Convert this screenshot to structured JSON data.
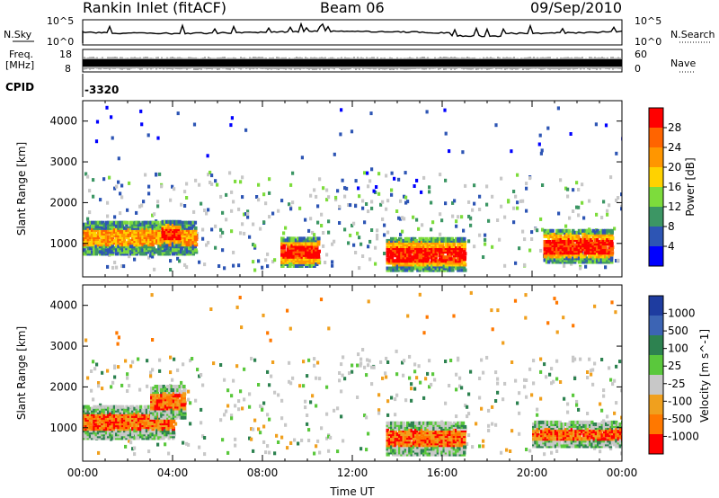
{
  "header": {
    "station": "Rankin Inlet (fitACF)",
    "beam": "Beam 06",
    "date": "09/Sep/2010"
  },
  "strip_panels": {
    "nsky": {
      "label": "N.Sky",
      "ticks": [
        "10^5",
        "10^0"
      ]
    },
    "freq": {
      "label_top": "Freq.",
      "label_unit": "[MHz]",
      "ticks": [
        "18",
        "8"
      ]
    },
    "cpid": {
      "label": "CPID",
      "value": "-3320"
    },
    "nsearch": {
      "label": "N.Search",
      "ticks": [
        "10^5",
        "10^0"
      ]
    },
    "nave": {
      "label": "Nave",
      "ticks": [
        "60",
        "0"
      ]
    }
  },
  "chart_data": [
    {
      "type": "heatmap",
      "title": "",
      "xlabel": "",
      "ylabel": "Slant Range [km]",
      "xlim": [
        "00:00",
        "24:00"
      ],
      "ylim": [
        180,
        4500
      ],
      "yticks": [
        1000,
        2000,
        3000,
        4000
      ],
      "parameter": "Power",
      "colorbar_label": "Power [dB]",
      "colorbar_ticks": [
        "28",
        "24",
        "20",
        "16",
        "12",
        "8",
        "4"
      ],
      "colorbar_colors": [
        "#ff0000",
        "#ff6400",
        "#ff9600",
        "#ffd200",
        "#7ddc3c",
        "#3c9664",
        "#2d55b4",
        "#0000ff"
      ],
      "echo_regions": [
        {
          "t_start": 0.0,
          "t_end": 5.0,
          "range_km": [
            700,
            1500
          ],
          "level": "moderate-high"
        },
        {
          "t_start": 3.5,
          "t_end": 4.3,
          "range_km": [
            900,
            1500
          ],
          "level": "high"
        },
        {
          "t_start": 8.8,
          "t_end": 10.5,
          "range_km": [
            400,
            1100
          ],
          "level": "high"
        },
        {
          "t_start": 13.5,
          "t_end": 17.0,
          "range_km": [
            300,
            1100
          ],
          "level": "high"
        },
        {
          "t_start": 20.5,
          "t_end": 23.5,
          "range_km": [
            500,
            1300
          ],
          "level": "high"
        }
      ]
    },
    {
      "type": "heatmap",
      "title": "",
      "xlabel": "Time UT",
      "ylabel": "Slant Range [km]",
      "xlim": [
        "00:00",
        "24:00"
      ],
      "xticks": [
        "00:00",
        "04:00",
        "08:00",
        "12:00",
        "16:00",
        "20:00",
        "00:00"
      ],
      "ylim": [
        180,
        4500
      ],
      "yticks": [
        1000,
        2000,
        3000,
        4000
      ],
      "parameter": "Velocity",
      "colorbar_label": "Velocity [m s^-1]",
      "colorbar_ticks": [
        "1000",
        "500",
        "100",
        "25",
        "-25",
        "-100",
        "-500",
        "-1000"
      ],
      "colorbar_colors": [
        "#1e3ca0",
        "#3c64b4",
        "#2d8250",
        "#5ac83c",
        "#c8c8c8",
        "#f0a01e",
        "#ff7800",
        "#ff0000"
      ],
      "echo_regions": [
        {
          "t_start": 0.0,
          "t_end": 4.0,
          "range_km": [
            700,
            1500
          ],
          "velocity": "away"
        },
        {
          "t_start": 3.0,
          "t_end": 4.5,
          "range_km": [
            1200,
            2000
          ],
          "velocity": "away"
        },
        {
          "t_start": 13.5,
          "t_end": 17.0,
          "range_km": [
            300,
            1100
          ],
          "velocity": "away"
        },
        {
          "t_start": 20.0,
          "t_end": 24.0,
          "range_km": [
            500,
            1100
          ],
          "velocity": "away"
        }
      ]
    }
  ]
}
